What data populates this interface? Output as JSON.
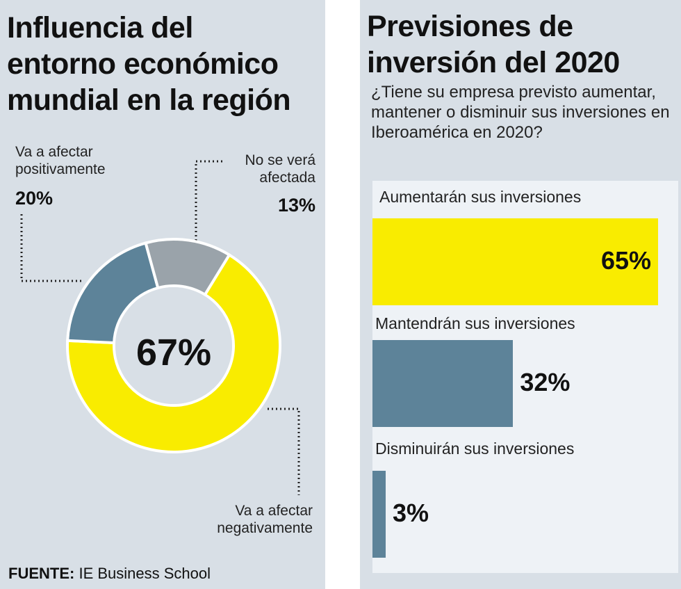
{
  "left": {
    "title_lines": [
      "Influencia del",
      "entorno económico",
      "mundial en la región"
    ],
    "labels": {
      "positive": [
        "Va a afectar",
        "positivamente"
      ],
      "none": [
        "No se verá",
        "afectada"
      ],
      "negative": [
        "Va a afectar",
        "negativamente"
      ]
    },
    "center_value": "67%",
    "source_label": "FUENTE:",
    "source_text": "IE Business School"
  },
  "right": {
    "title_lines": [
      "Previsiones de",
      "inversión del 2020"
    ],
    "question": "¿Tiene su empresa previsto aumentar, mantener o disminuir sus inversiones en Iberoamérica en 2020?"
  },
  "chart_data": [
    {
      "type": "pie",
      "title": "Influencia del entorno económico mundial en la región",
      "categories": [
        "Va a afectar negativamente",
        "Va a afectar positivamente",
        "No se verá afectada"
      ],
      "values": [
        67,
        20,
        13
      ],
      "value_labels": [
        "67%",
        "20%",
        "13%"
      ],
      "colors": [
        "#f9ec00",
        "#5d8399",
        "#9aa3aa"
      ],
      "style": "donut"
    },
    {
      "type": "bar",
      "orientation": "horizontal",
      "title": "Previsiones de inversión del 2020",
      "categories": [
        "Aumentarán sus inversiones",
        "Mantendrán sus inversiones",
        "Disminuirán sus inversiones"
      ],
      "values": [
        65,
        32,
        3
      ],
      "value_labels": [
        "65%",
        "32%",
        "3%"
      ],
      "colors": [
        "#f9ec00",
        "#5d8399",
        "#5d8399"
      ],
      "xlim": [
        0,
        65
      ]
    }
  ]
}
